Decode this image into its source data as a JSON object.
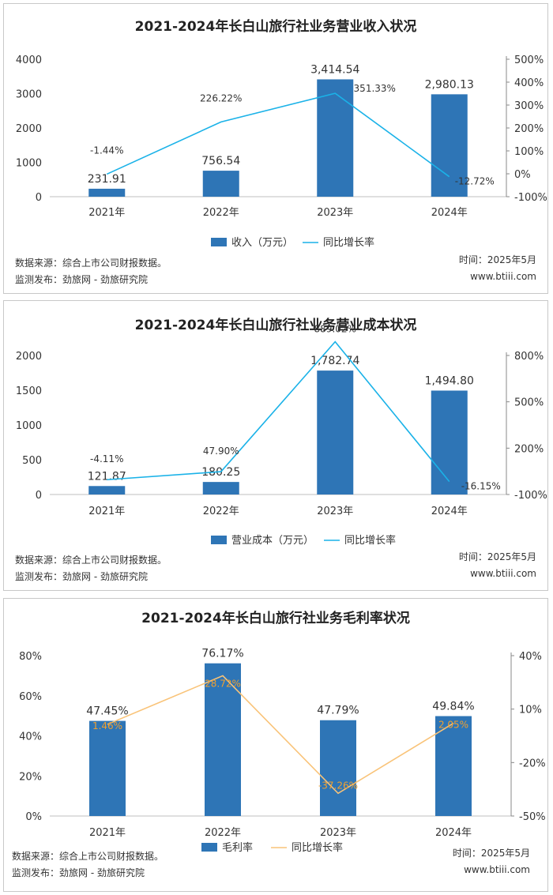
{
  "colors": {
    "bar": "#2e75b6",
    "line_blue": "#1ab2e8",
    "line_orange": "#f9c378",
    "label_orange": "#f0a030"
  },
  "footer": {
    "source": "数据来源：综合上市公司财报数据。",
    "publisher": "监测发布：劲旅网 - 劲旅研究院",
    "time": "时间：2025年5月",
    "site": "www.btiii.com"
  },
  "chart_data": [
    {
      "type": "bar",
      "title": "2021-2024年长白山旅行社业务营业收入状况",
      "categories": [
        "2021年",
        "2022年",
        "2023年",
        "2024年"
      ],
      "bar_series": {
        "name": "收入（万元）",
        "values": [
          231.91,
          756.54,
          3414.54,
          2980.13
        ],
        "labels": [
          "231.91",
          "756.54",
          "3,414.54",
          "2,980.13"
        ]
      },
      "line_series": {
        "name": "同比增长率",
        "values": [
          -1.44,
          226.22,
          351.33,
          -12.72
        ],
        "labels": [
          "-1.44%",
          "226.22%",
          "351.33%",
          "-12.72%"
        ]
      },
      "y_left": {
        "ticks": [
          "0",
          "1000",
          "2000",
          "3000",
          "4000"
        ],
        "range": [
          0,
          4000
        ]
      },
      "y_right": {
        "ticks": [
          "-100%",
          "0%",
          "100%",
          "200%",
          "300%",
          "400%",
          "500%"
        ],
        "range": [
          -100,
          500
        ]
      },
      "legend": "bottom"
    },
    {
      "type": "bar",
      "title": "2021-2024年长白山旅行社业务营业成本状况",
      "categories": [
        "2021年",
        "2022年",
        "2023年",
        "2024年"
      ],
      "bar_series": {
        "name": "营业成本（万元）",
        "values": [
          121.87,
          180.25,
          1782.74,
          1494.8
        ],
        "labels": [
          "121.87",
          "180.25",
          "1,782.74",
          "1,494.80"
        ]
      },
      "line_series": {
        "name": "同比增长率",
        "values": [
          -4.11,
          47.9,
          889.02,
          -16.15
        ],
        "labels": [
          "-4.11%",
          "47.90%",
          "889.02%",
          "-16.15%"
        ]
      },
      "y_left": {
        "ticks": [
          "0",
          "500",
          "1000",
          "1500",
          "2000"
        ],
        "range": [
          0,
          2000
        ]
      },
      "y_right": {
        "ticks": [
          "-100%",
          "200%",
          "500%",
          "800%"
        ],
        "range": [
          -100,
          800
        ]
      },
      "legend": "bottom"
    },
    {
      "type": "bar",
      "title": "2021-2024年长白山旅行社业务毛利率状况",
      "categories": [
        "2021年",
        "2022年",
        "2023年",
        "2024年"
      ],
      "bar_series": {
        "name": "毛利率",
        "values": [
          47.45,
          76.17,
          47.79,
          49.84
        ],
        "labels": [
          "47.45%",
          "76.17%",
          "47.79%",
          "49.84%"
        ]
      },
      "line_series": {
        "name": "同比增长率",
        "values": [
          1.46,
          28.72,
          -37.26,
          2.05
        ],
        "labels": [
          "1.46%",
          "28.72%",
          "-37.26%",
          "2.05%"
        ]
      },
      "y_left": {
        "ticks": [
          "0%",
          "20%",
          "40%",
          "60%",
          "80%"
        ],
        "range": [
          0,
          80
        ]
      },
      "y_right": {
        "ticks": [
          "-50%",
          "-20%",
          "10%",
          "40%"
        ],
        "range": [
          -50,
          40
        ]
      },
      "legend": "bottom"
    }
  ]
}
